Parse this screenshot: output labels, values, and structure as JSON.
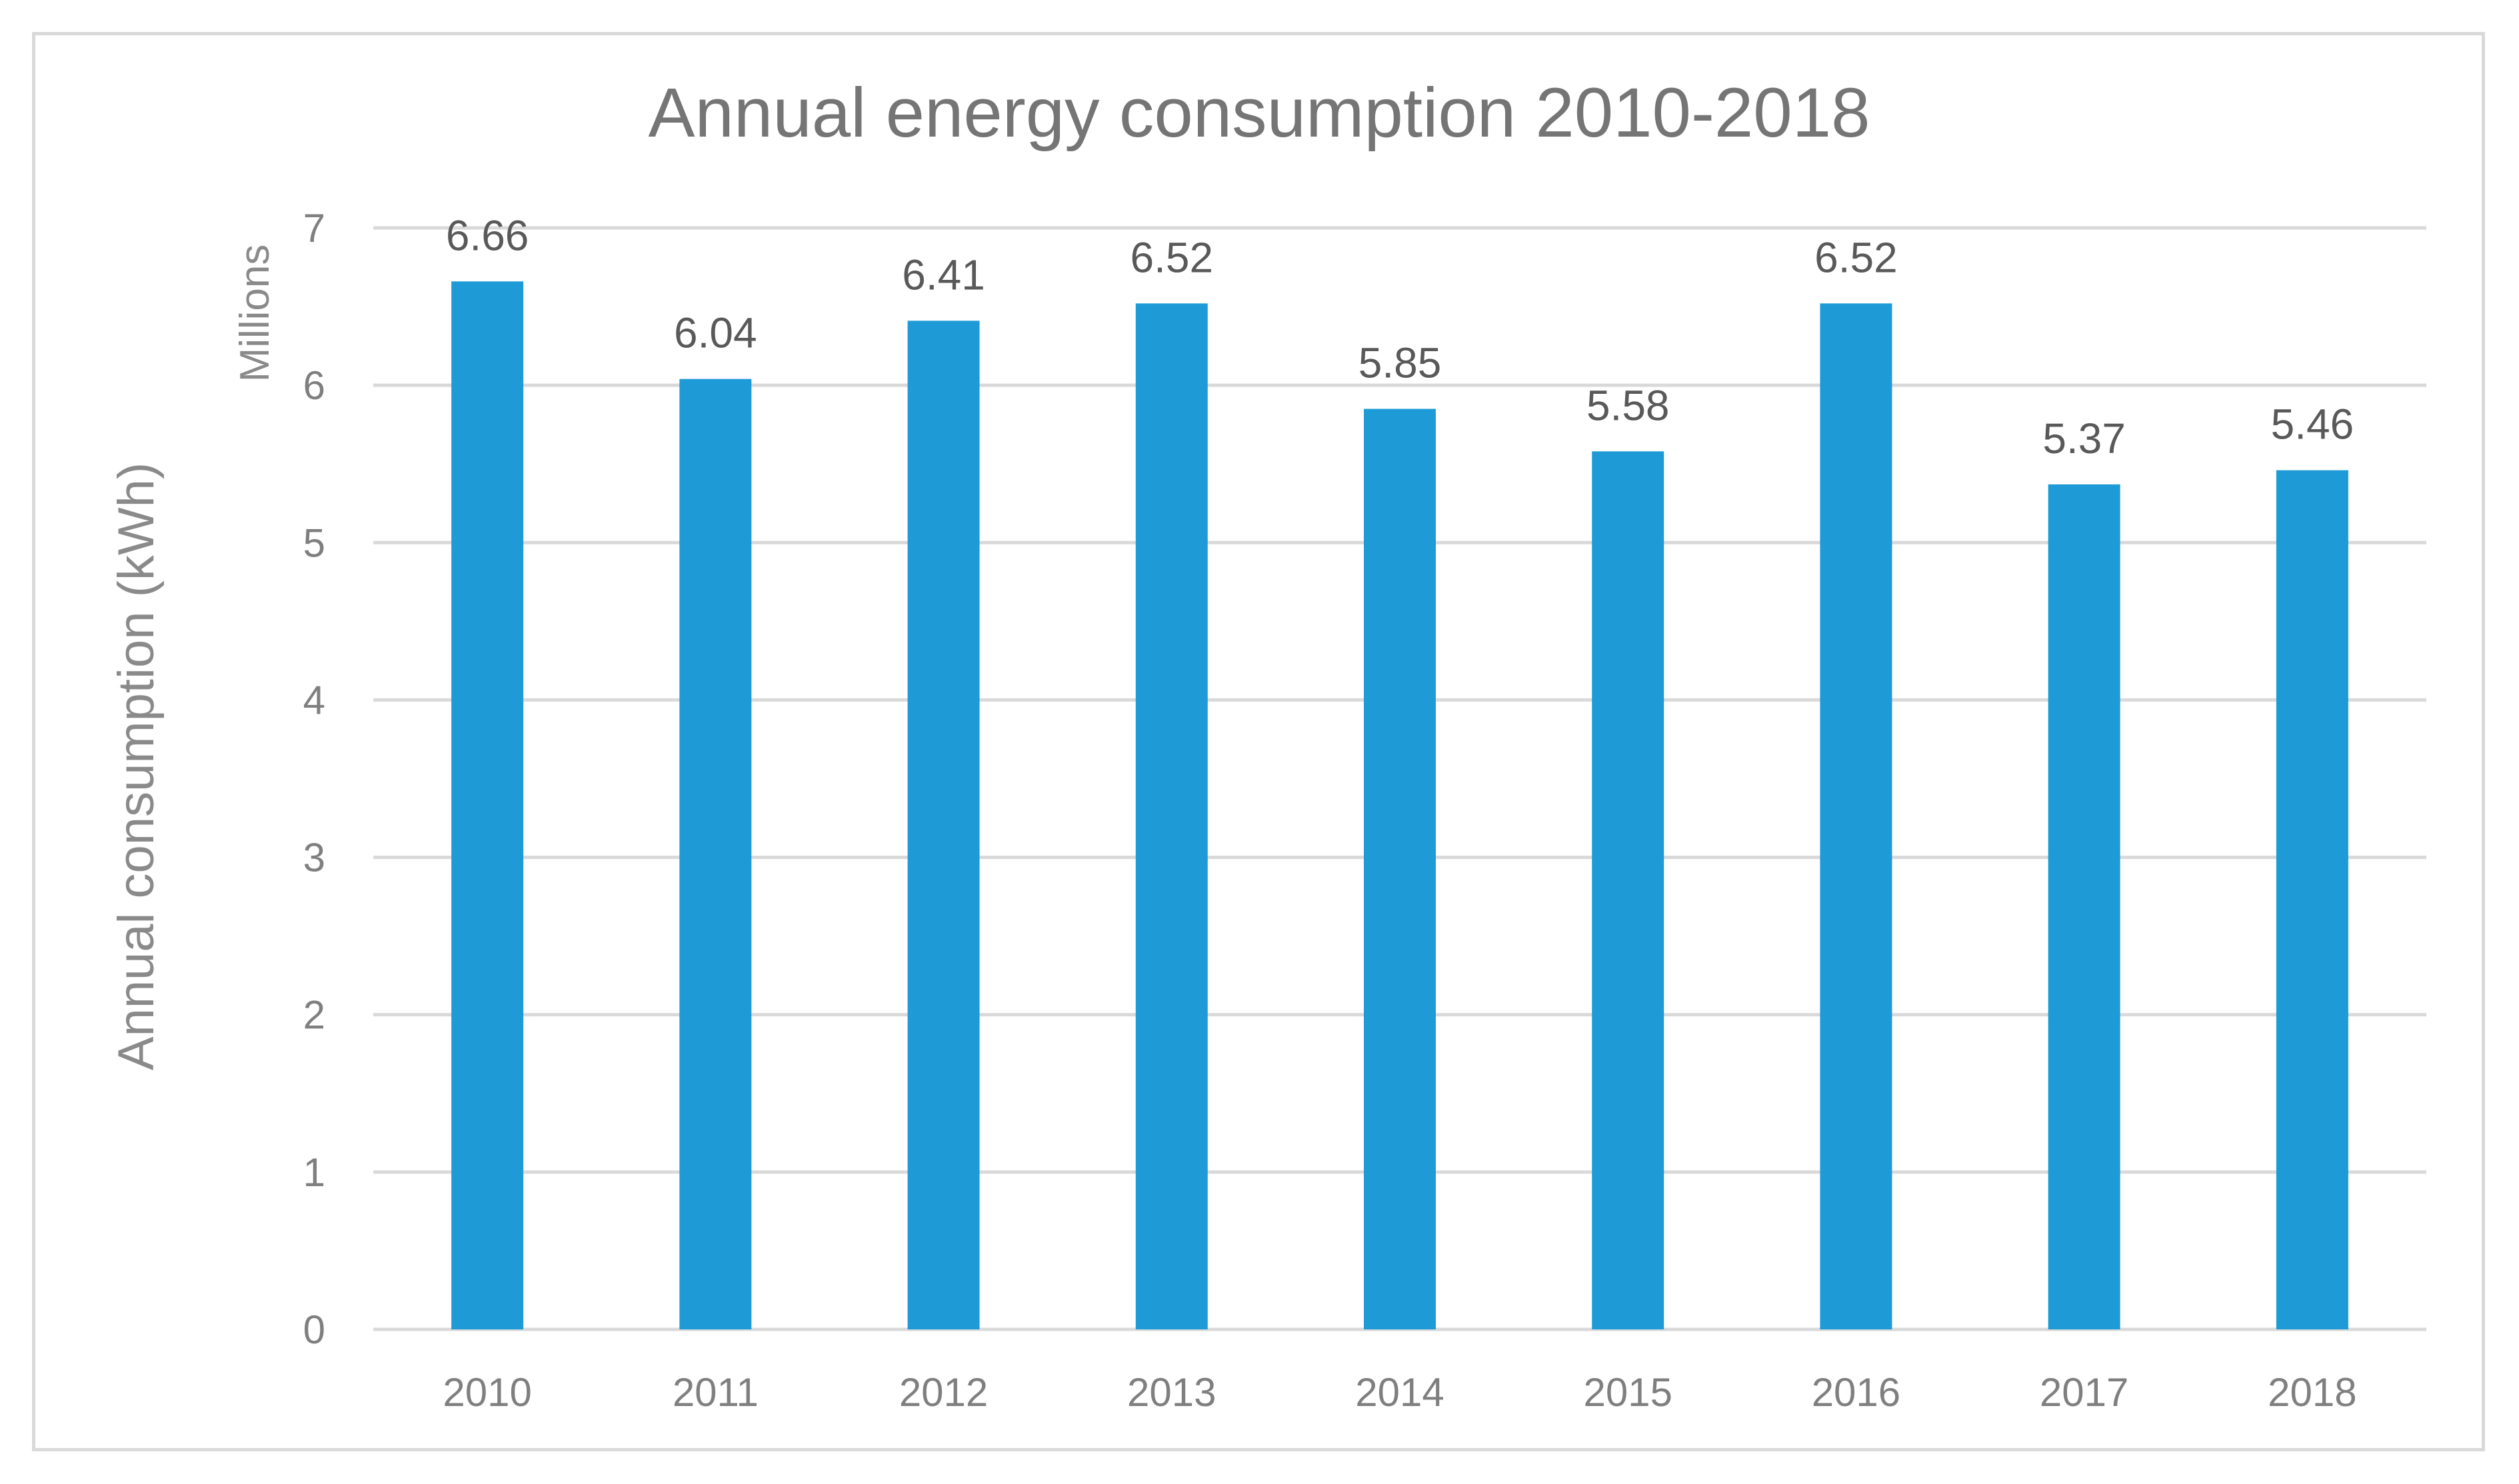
{
  "chart_data": {
    "type": "bar",
    "title": "Annual energy consumption 2010-2018",
    "xlabel": "",
    "ylabel": "Annual consumption (kWh)",
    "y_units": "Millions",
    "categories": [
      "2010",
      "2011",
      "2012",
      "2013",
      "2014",
      "2015",
      "2016",
      "2017",
      "2018"
    ],
    "values": [
      6.66,
      6.04,
      6.41,
      6.52,
      5.85,
      5.58,
      6.52,
      5.37,
      5.46
    ],
    "data_labels": [
      "6.66",
      "6.04",
      "6.41",
      "6.52",
      "5.85",
      "5.58",
      "6.52",
      "5.37",
      "5.46"
    ],
    "ylim": [
      0,
      7
    ],
    "yticks": [
      0,
      1,
      2,
      3,
      4,
      5,
      6,
      7
    ],
    "grid": true,
    "legend": "none",
    "bar_color": "#1e9bd7"
  }
}
